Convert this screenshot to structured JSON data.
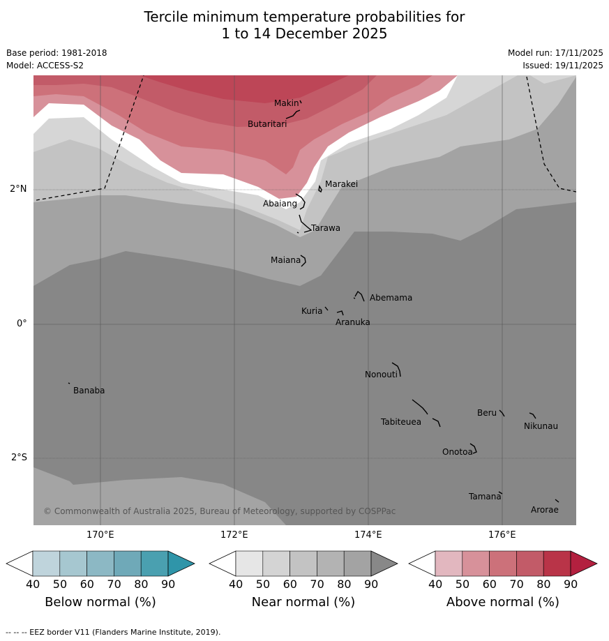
{
  "title_line1": "Tercile minimum temperature probabilities for",
  "title_line2": "1 to 14 December 2025",
  "base_period": "Base period: 1981-2018",
  "model": "Model: ACCESS-S2",
  "model_run": "Model run: 17/11/2025",
  "issued": "Issued: 19/11/2025",
  "lat_labels": [
    "2°N",
    "0°",
    "2°S"
  ],
  "lon_labels": [
    "170°E",
    "172°E",
    "174°E",
    "176°E"
  ],
  "copyright": "© Commonwealth of Australia 2025, Bureau of Meteorology, supported by COSPPac",
  "places": [
    "Makin",
    "Butaritari",
    "Marakei",
    "Abaiang",
    "Tarawa",
    "Maiana",
    "Abemama",
    "Kuria",
    "Aranuka",
    "Nonouti",
    "Banaba",
    "Beru",
    "Tabiteuea",
    "Nikunau",
    "Onotoa",
    "Tamana",
    "Arorae"
  ],
  "colorbars": [
    {
      "title": "Below normal (%)",
      "ticks": [
        "40",
        "50",
        "60",
        "70",
        "80",
        "90"
      ],
      "colors": [
        "#bfd4dc",
        "#a6c7d0",
        "#8cb8c4",
        "#6fa9b8",
        "#4aa0b0",
        "#2f95a9"
      ]
    },
    {
      "title": "Near normal (%)",
      "ticks": [
        "40",
        "50",
        "60",
        "70",
        "80",
        "90"
      ],
      "colors": [
        "#e6e6e6",
        "#d4d4d4",
        "#c3c3c3",
        "#b3b3b3",
        "#a3a3a3",
        "#888888"
      ]
    },
    {
      "title": "Above normal (%)",
      "ticks": [
        "40",
        "50",
        "60",
        "70",
        "80",
        "90"
      ],
      "colors": [
        "#e2b7bf",
        "#d7919a",
        "#cc717a",
        "#c25b68",
        "#b93448",
        "#b3203f"
      ]
    }
  ],
  "footer_note": "-- -- -- EEZ border V11 (Flanders Marine Institute, 2019)."
}
